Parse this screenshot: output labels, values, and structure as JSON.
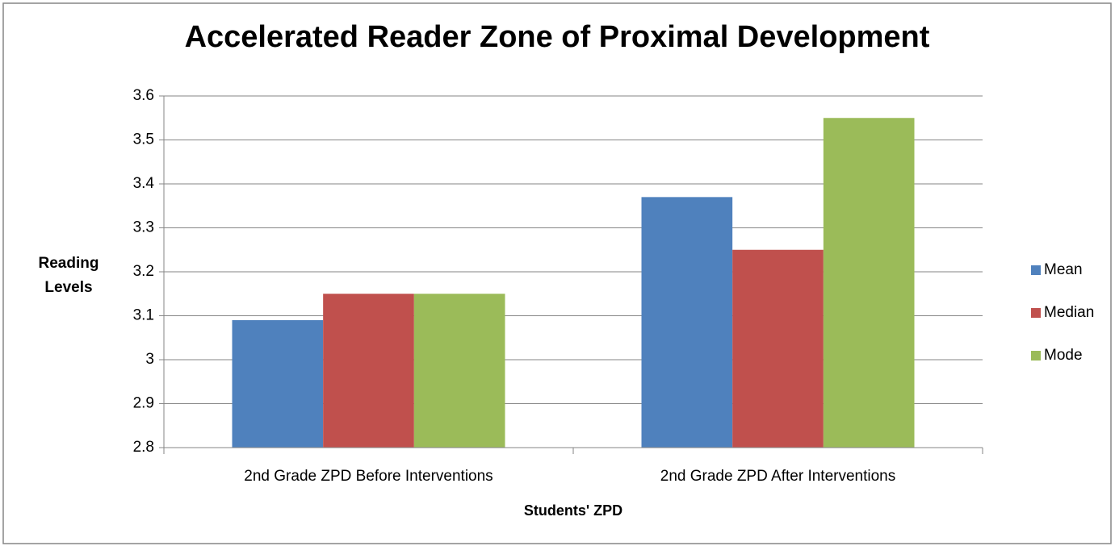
{
  "chart_data": {
    "type": "bar",
    "title": "Accelerated Reader Zone of Proximal Development",
    "x_label": "Students' ZPD",
    "y_label": "Reading Levels",
    "categories": [
      "2nd Grade ZPD Before Interventions",
      "2nd Grade ZPD After Interventions"
    ],
    "series": [
      {
        "name": "Mean",
        "color": "#4f81bd",
        "values": [
          3.09,
          3.37
        ]
      },
      {
        "name": "Median",
        "color": "#c0504d",
        "values": [
          3.15,
          3.25
        ]
      },
      {
        "name": "Mode",
        "color": "#9bbb59",
        "values": [
          3.15,
          3.55
        ]
      }
    ],
    "ylim": [
      2.8,
      3.6
    ],
    "yticks": [
      2.8,
      2.9,
      3,
      3.1,
      3.2,
      3.3,
      3.4,
      3.5,
      3.6
    ],
    "grid": true,
    "legend": "right"
  }
}
